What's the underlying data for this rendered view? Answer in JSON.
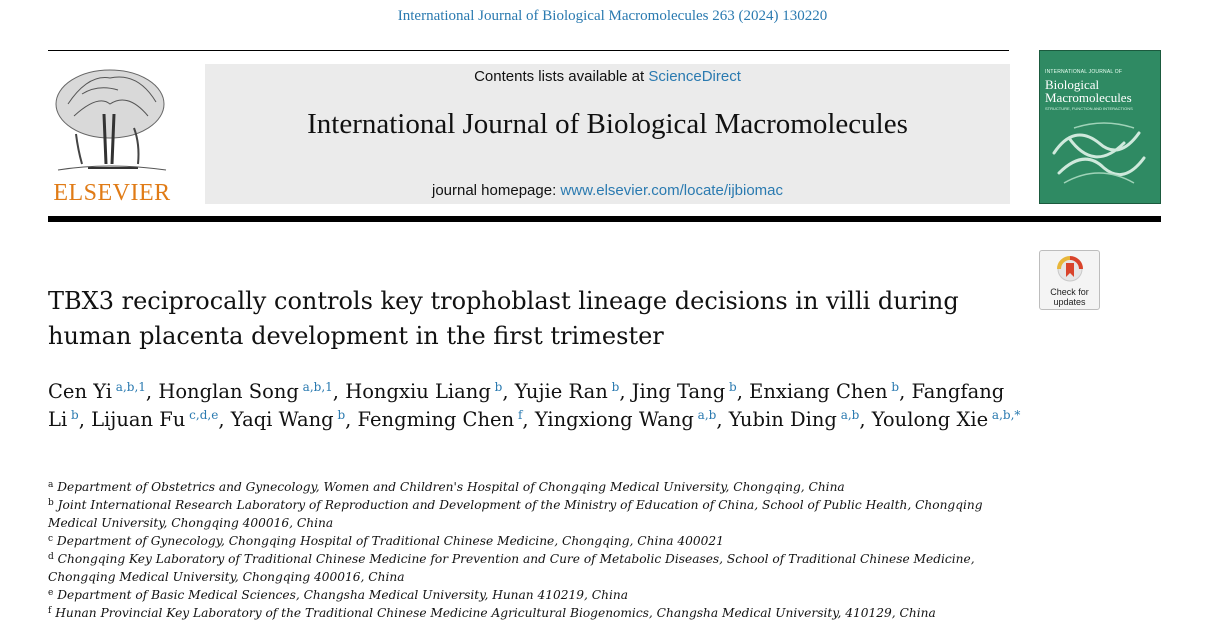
{
  "header": {
    "citation": "International Journal of Biological Macromolecules 263 (2024) 130220",
    "publisher_name": "ELSEVIER",
    "contents_prefix": "Contents lists available at ",
    "contents_link": "ScienceDirect",
    "journal_title": "International Journal of Biological Macromolecules",
    "homepage_prefix": "journal homepage: ",
    "homepage_link": "www.elsevier.com/locate/ijbiomac"
  },
  "cover": {
    "top_text": "INTERNATIONAL JOURNAL OF",
    "title_line1": "Biological",
    "title_line2": "Macromolecules",
    "subtitle": "STRUCTURE, FUNCTION AND INTERACTIONS"
  },
  "check_updates": {
    "line1": "Check for",
    "line2": "updates"
  },
  "article": {
    "title": "TBX3 reciprocally controls key trophoblast lineage decisions in villi during human placenta development in the first trimester",
    "authors": [
      {
        "name": "Cen Yi",
        "sup": "a,b,1",
        "sep": ", "
      },
      {
        "name": "Honglan Song",
        "sup": "a,b,1",
        "sep": ", "
      },
      {
        "name": "Hongxiu Liang",
        "sup": "b",
        "sep": ", "
      },
      {
        "name": "Yujie Ran",
        "sup": "b",
        "sep": ", "
      },
      {
        "name": "Jing Tang",
        "sup": "b",
        "sep": ", "
      },
      {
        "name": "Enxiang Chen",
        "sup": "b",
        "sep": ", "
      },
      {
        "name": "Fangfang Li",
        "sup": "b",
        "sep": ", "
      },
      {
        "name": "Lijuan Fu",
        "sup": "c,d,e",
        "sep": ", "
      },
      {
        "name": "Yaqi Wang",
        "sup": "b",
        "sep": ", "
      },
      {
        "name": "Fengming Chen",
        "sup": "f",
        "sep": ", "
      },
      {
        "name": "Yingxiong Wang",
        "sup": "a,b",
        "sep": ", "
      },
      {
        "name": "Yubin Ding",
        "sup": "a,b",
        "sep": ", "
      },
      {
        "name": "Youlong Xie",
        "sup": "a,b,*",
        "sep": ""
      }
    ],
    "affiliations": [
      {
        "letter": "a",
        "text": "Department of Obstetrics and Gynecology, Women and Children's Hospital of Chongqing Medical University, Chongqing, China"
      },
      {
        "letter": "b",
        "text": "Joint International Research Laboratory of Reproduction and Development of the Ministry of Education of China, School of Public Health, Chongqing Medical University, Chongqing 400016, China"
      },
      {
        "letter": "c",
        "text": "Department of Gynecology, Chongqing Hospital of Traditional Chinese Medicine, Chongqing, China 400021"
      },
      {
        "letter": "d",
        "text": "Chongqing Key Laboratory of Traditional Chinese Medicine for Prevention and Cure of Metabolic Diseases, School of Traditional Chinese Medicine, Chongqing Medical University, Chongqing 400016, China"
      },
      {
        "letter": "e",
        "text": "Department of Basic Medical Sciences, Changsha Medical University, Hunan 410219, China"
      },
      {
        "letter": "f",
        "text": "Hunan Provincial Key Laboratory of the Traditional Chinese Medicine Agricultural Biogenomics, Changsha Medical University, 410129, China"
      }
    ]
  },
  "colors": {
    "link": "#2a7ab0",
    "publisher": "#e07b16",
    "cover": "#2f8a63"
  },
  "icons": {
    "logo": "elsevier-tree-icon",
    "check": "check-for-updates-icon"
  }
}
